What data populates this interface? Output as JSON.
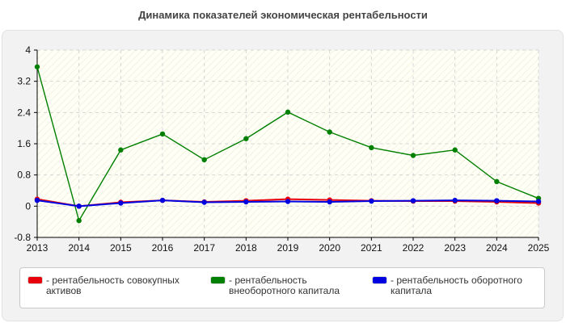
{
  "chart_data": {
    "type": "line",
    "title": "Динамика показателей экономическая рентабельности",
    "x": [
      "2013",
      "2014",
      "2015",
      "2016",
      "2017",
      "2018",
      "2019",
      "2020",
      "2021",
      "2022",
      "2023",
      "2024",
      "2025"
    ],
    "ylim": [
      -0.8,
      4
    ],
    "yticks": [
      "4",
      "3.2",
      "2.4",
      "1.6",
      "0.8",
      "0",
      "-0.8"
    ],
    "grid": true,
    "legend_position": "bottom",
    "series": [
      {
        "name": "- рентабельность совокупных активов",
        "label_lines": [
          "- рентабельность совокупных",
          "активов"
        ],
        "color": "#e8000b",
        "values": [
          0.18,
          0.0,
          0.1,
          0.15,
          0.11,
          0.14,
          0.18,
          0.16,
          0.14,
          0.13,
          0.13,
          0.11,
          0.08
        ]
      },
      {
        "name": "- рентабельность внеоборотного капитала",
        "label_lines": [
          "- рентабельность",
          "внеоборотного капитала"
        ],
        "color": "#008000",
        "values": [
          3.57,
          -0.37,
          1.44,
          1.85,
          1.19,
          1.73,
          2.41,
          1.9,
          1.5,
          1.3,
          1.44,
          0.63,
          0.2
        ]
      },
      {
        "name": "- рентабельность оборотного капитала",
        "label_lines": [
          "- рентабельность оборотного",
          "капитала"
        ],
        "color": "#0000e0",
        "values": [
          0.15,
          0.0,
          0.08,
          0.15,
          0.1,
          0.11,
          0.12,
          0.11,
          0.13,
          0.14,
          0.15,
          0.14,
          0.12
        ]
      }
    ]
  }
}
